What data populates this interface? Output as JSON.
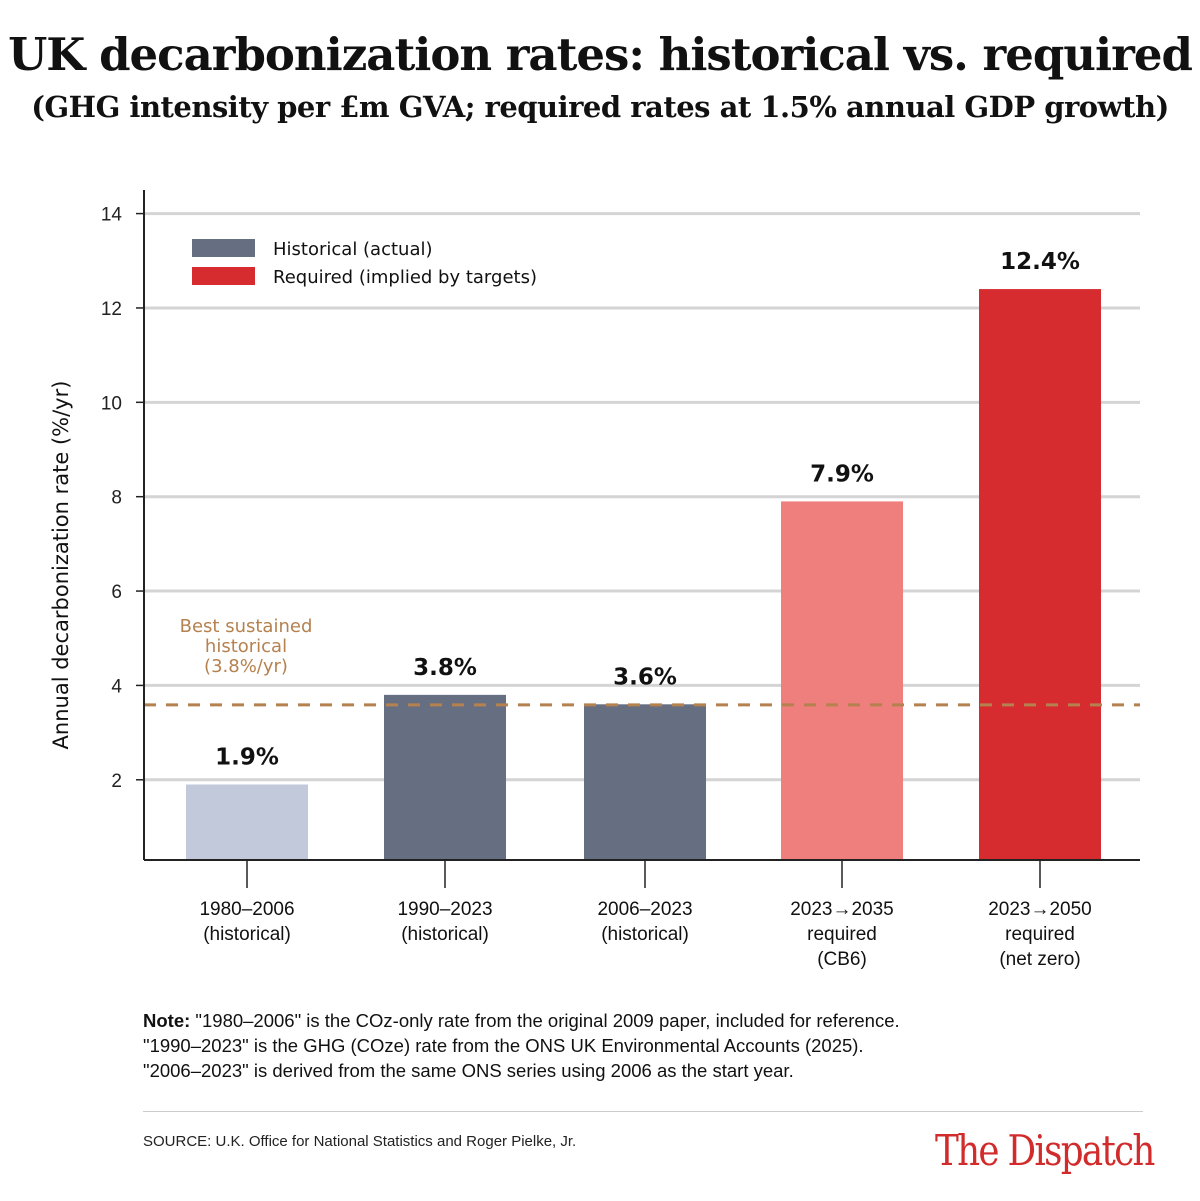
{
  "title": "UK decarbonization rates: historical vs. required",
  "subtitle": "(GHG intensity per £m GVA; required rates at 1.5% annual GDP growth)",
  "chart_data": {
    "type": "bar",
    "ylabel": "Annual decarbonization rate (%/yr)",
    "xlabel": "",
    "ylim": [
      0.3,
      14.5
    ],
    "yticks": [
      2,
      4,
      6,
      8,
      10,
      12,
      14
    ],
    "grid": true,
    "legend_position": "top-left",
    "legend": [
      {
        "label": "Historical (actual)",
        "color": "#666f82"
      },
      {
        "label": "Required (implied by targets)",
        "color": "#d62b2f"
      }
    ],
    "categories": [
      [
        "1980–2006",
        "(historical)"
      ],
      [
        "1990–2023",
        "(historical)"
      ],
      [
        "2006–2023",
        "(historical)"
      ],
      [
        "2023→2035",
        "required",
        "(CB6)"
      ],
      [
        "2023→2050",
        "required",
        "(net zero)"
      ]
    ],
    "values": [
      1.9,
      3.8,
      3.6,
      7.9,
      12.4
    ],
    "data_labels": [
      "1.9%",
      "3.8%",
      "3.6%",
      "7.9%",
      "12.4%"
    ],
    "colors": [
      "#c2c9db",
      "#666f82",
      "#666f82",
      "#ef7f7c",
      "#d62b2f"
    ],
    "reference_line": {
      "value": 3.8,
      "label": [
        "Best sustained",
        "historical",
        "(3.8%/yr)"
      ],
      "color": "#b5814f"
    }
  },
  "note": {
    "bold": "Note:",
    "lines": [
      "\"1980–2006\" is the COz-only rate from the original 2009 paper, included for reference.",
      "\"1990–2023\" is the GHG (COze) rate from the ONS UK Environmental Accounts (2025).",
      "\"2006–2023\" is derived from the same ONS series using 2006 as the start year."
    ]
  },
  "source": "SOURCE: U.K. Office for National Statistics and Roger Pielke, Jr.",
  "logo": "The Dispatch"
}
